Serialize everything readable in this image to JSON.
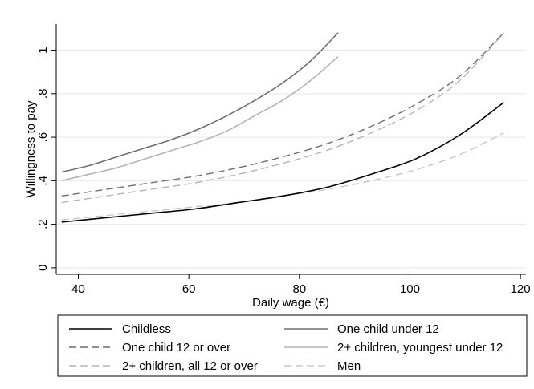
{
  "chart_data": {
    "type": "line",
    "xlabel": "Daily wage (€)",
    "ylabel": "Willingness to pay",
    "xlim": [
      36,
      121
    ],
    "ylim": [
      -0.03,
      1.12
    ],
    "grid": true,
    "legend_position": "bottom",
    "x_ticks": [
      {
        "value": 40,
        "label": "40"
      },
      {
        "value": 60,
        "label": "60"
      },
      {
        "value": 80,
        "label": "80"
      },
      {
        "value": 100,
        "label": "100"
      },
      {
        "value": 120,
        "label": "120"
      }
    ],
    "y_ticks": [
      {
        "value": 0,
        "label": "0"
      },
      {
        "value": 0.2,
        "label": ".2"
      },
      {
        "value": 0.4,
        "label": ".4"
      },
      {
        "value": 0.6,
        "label": ".6"
      },
      {
        "value": 0.8,
        "label": ".8"
      },
      {
        "value": 1,
        "label": "1"
      }
    ],
    "series": [
      {
        "name": "Childless",
        "color": "#000000",
        "dash": "solid",
        "x": [
          37,
          45,
          53,
          61,
          69,
          77,
          85,
          93,
          101,
          109,
          117
        ],
        "y": [
          0.21,
          0.23,
          0.25,
          0.27,
          0.3,
          0.33,
          0.37,
          0.43,
          0.5,
          0.61,
          0.76
        ]
      },
      {
        "name": "One child under 12",
        "color": "#6f6f6f",
        "dash": "solid",
        "x": [
          37,
          42,
          47,
          52,
          57,
          62,
          67,
          72,
          77,
          82,
          87
        ],
        "y": [
          0.44,
          0.47,
          0.51,
          0.55,
          0.59,
          0.64,
          0.7,
          0.77,
          0.85,
          0.95,
          1.08
        ]
      },
      {
        "name": "One child 12 or over",
        "color": "#6f6f6f",
        "dash": "dashed",
        "x": [
          37,
          45,
          53,
          61,
          69,
          77,
          85,
          93,
          101,
          109,
          117
        ],
        "y": [
          0.33,
          0.36,
          0.39,
          0.42,
          0.46,
          0.51,
          0.57,
          0.65,
          0.75,
          0.88,
          1.08
        ]
      },
      {
        "name": "2+ children, youngest under 12",
        "color": "#b4b4b4",
        "dash": "solid",
        "x": [
          37,
          42,
          47,
          52,
          57,
          62,
          67,
          72,
          77,
          82,
          87
        ],
        "y": [
          0.4,
          0.43,
          0.46,
          0.5,
          0.54,
          0.58,
          0.63,
          0.7,
          0.77,
          0.86,
          0.97
        ]
      },
      {
        "name": "2+ children, all 12 or over",
        "color": "#b4b4b4",
        "dash": "dashed",
        "x": [
          37,
          45,
          53,
          61,
          69,
          77,
          85,
          93,
          101,
          109,
          117
        ],
        "y": [
          0.3,
          0.33,
          0.36,
          0.39,
          0.43,
          0.48,
          0.54,
          0.62,
          0.72,
          0.86,
          1.08
        ]
      },
      {
        "name": "Men",
        "color": "#c8c8c8",
        "dash": "dashed",
        "x": [
          37,
          45,
          53,
          61,
          69,
          77,
          85,
          93,
          101,
          109,
          117
        ],
        "y": [
          0.22,
          0.24,
          0.26,
          0.28,
          0.3,
          0.33,
          0.36,
          0.4,
          0.45,
          0.52,
          0.62
        ]
      }
    ]
  }
}
